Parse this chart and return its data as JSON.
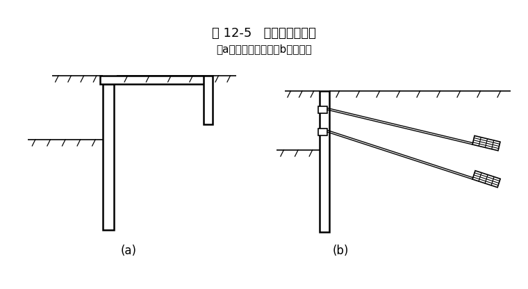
{
  "title": "图 12-5   拉锚式支护结构",
  "subtitle": "（a）地面拉锚式；（b）锚杆式",
  "bg_color": "#ffffff",
  "line_color": "#000000",
  "fig_width": 7.6,
  "fig_height": 4.16,
  "dpi": 100
}
